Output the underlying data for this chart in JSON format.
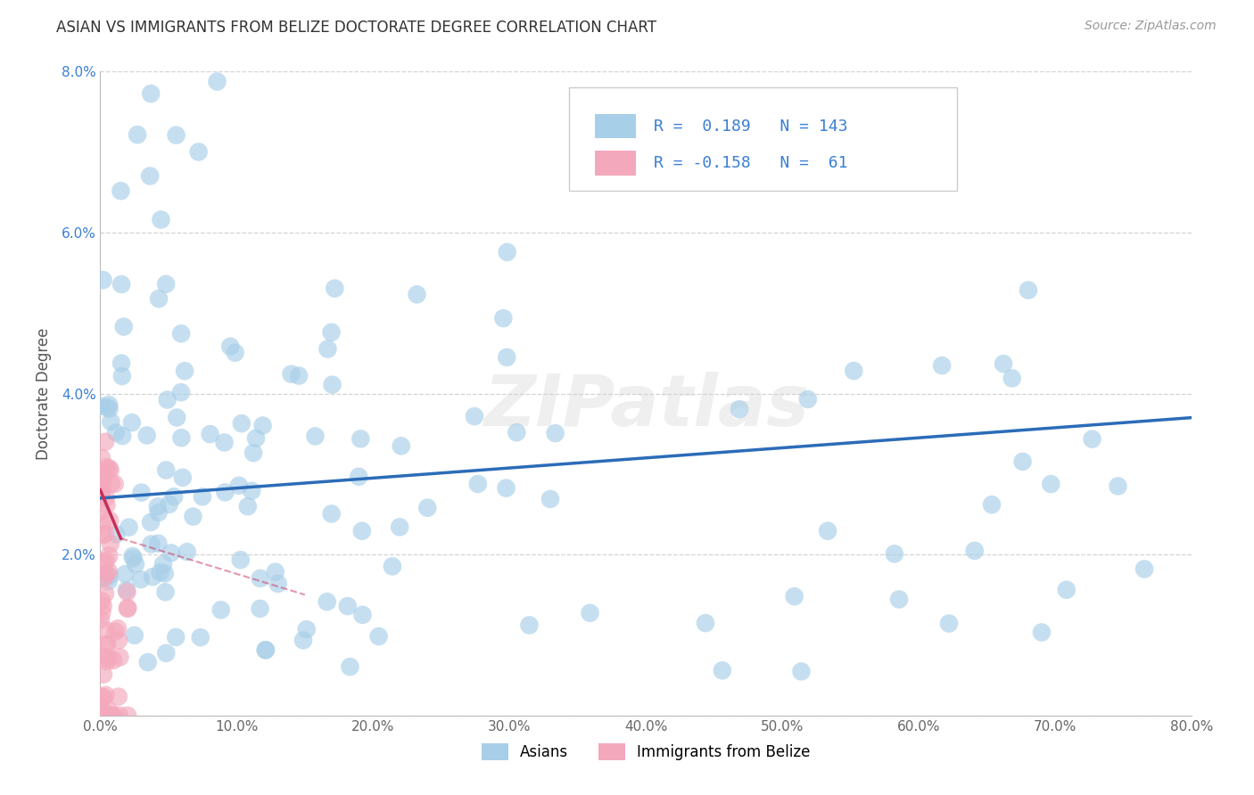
{
  "title": "ASIAN VS IMMIGRANTS FROM BELIZE DOCTORATE DEGREE CORRELATION CHART",
  "source": "Source: ZipAtlas.com",
  "ylabel": "Doctorate Degree",
  "xlim": [
    0.0,
    0.8
  ],
  "ylim": [
    0.0,
    0.08
  ],
  "xticks": [
    0.0,
    0.1,
    0.2,
    0.3,
    0.4,
    0.5,
    0.6,
    0.7,
    0.8
  ],
  "yticks": [
    0.0,
    0.02,
    0.04,
    0.06,
    0.08
  ],
  "xtick_labels": [
    "0.0%",
    "10.0%",
    "20.0%",
    "30.0%",
    "40.0%",
    "50.0%",
    "60.0%",
    "70.0%",
    "80.0%"
  ],
  "ytick_labels": [
    "",
    "2.0%",
    "4.0%",
    "6.0%",
    "8.0%"
  ],
  "blue_color": "#a8cfe8",
  "pink_color": "#f4a8bc",
  "blue_line_color": "#2b6cb8",
  "pink_line_color": "#c8305a",
  "legend_text_color": "#3a7fd5",
  "watermark": "ZIPatlas",
  "asian_R": 0.189,
  "asian_N": 143,
  "belize_R": -0.158,
  "belize_N": 61,
  "background_color": "#ffffff",
  "grid_color": "#c8c8c8"
}
